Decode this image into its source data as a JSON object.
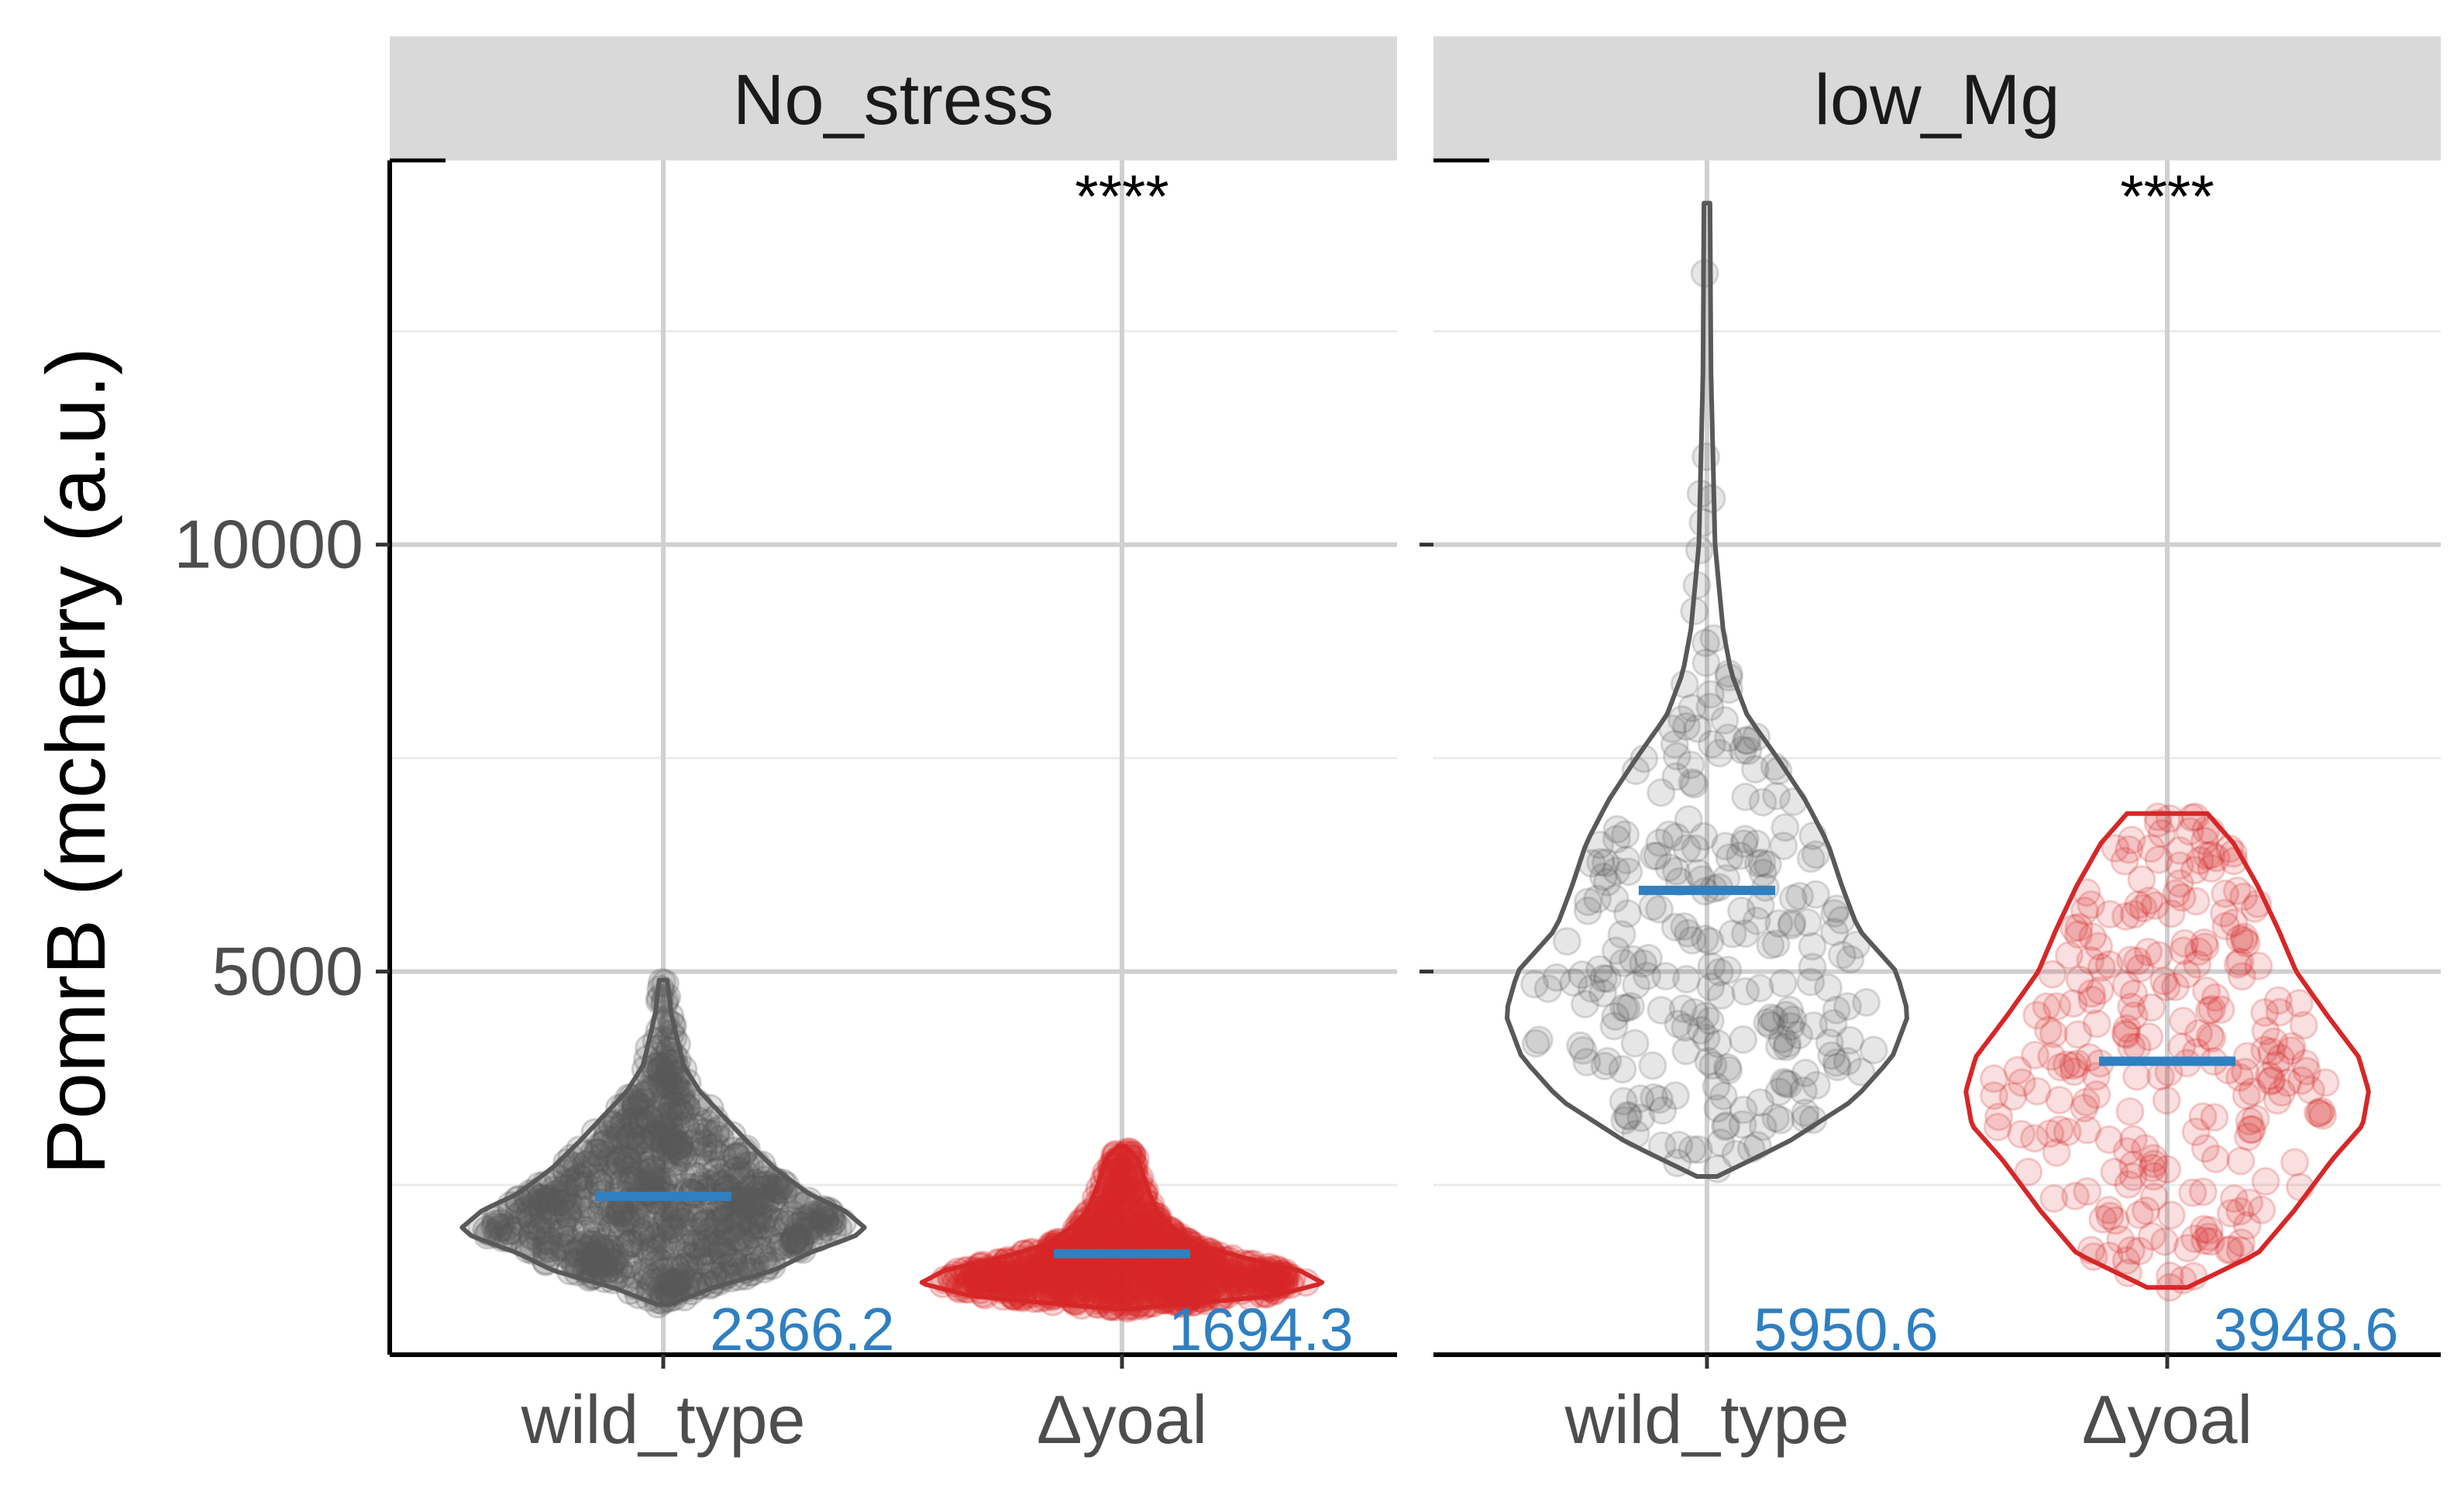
{
  "chart_data": {
    "type": "violin",
    "ylabel": "PomrB (mcherry (a.u.)",
    "xlabel": "",
    "ylim": [
      512,
      14500
    ],
    "yticks": [
      5000,
      10000
    ],
    "grid": true,
    "categories": [
      "wild_type",
      "Δyoal"
    ],
    "colors": {
      "wild_type": "#595959",
      "Δyoal": "#d62728",
      "mean": "#2f7fc1",
      "mean_label": "#2f7fc1"
    },
    "panels": [
      {
        "facet": "No_stress",
        "significance": "****",
        "groups": [
          {
            "category": "wild_type",
            "mean": 2366.2,
            "mean_label": "2366.2",
            "min": 1100,
            "max": 4900,
            "profile": [
              [
                1100,
                0.03
              ],
              [
                1300,
                0.25
              ],
              [
                1500,
                0.55
              ],
              [
                1700,
                0.72
              ],
              [
                1900,
                0.95
              ],
              [
                2000,
                1.0
              ],
              [
                2200,
                0.9
              ],
              [
                2400,
                0.72
              ],
              [
                2700,
                0.55
              ],
              [
                3000,
                0.42
              ],
              [
                3300,
                0.3
              ],
              [
                3600,
                0.18
              ],
              [
                3900,
                0.1
              ],
              [
                4200,
                0.07
              ],
              [
                4500,
                0.04
              ],
              [
                4900,
                0.02
              ]
            ]
          },
          {
            "category": "Δyoal",
            "mean": 1694.3,
            "mean_label": "1694.3",
            "min": 1050,
            "max": 2950,
            "profile": [
              [
                1050,
                0.05
              ],
              [
                1200,
                0.75
              ],
              [
                1350,
                1.0
              ],
              [
                1500,
                0.88
              ],
              [
                1650,
                0.6
              ],
              [
                1800,
                0.38
              ],
              [
                2000,
                0.25
              ],
              [
                2200,
                0.17
              ],
              [
                2500,
                0.12
              ],
              [
                2800,
                0.08
              ],
              [
                2950,
                0.02
              ]
            ]
          }
        ]
      },
      {
        "facet": "low_Mg",
        "significance": "****",
        "groups": [
          {
            "category": "wild_type",
            "mean": 5950.6,
            "mean_label": "5950.6",
            "min": 2600,
            "max": 14000,
            "profile": [
              [
                2600,
                0.05
              ],
              [
                3000,
                0.4
              ],
              [
                3500,
                0.73
              ],
              [
                4000,
                0.92
              ],
              [
                4500,
                1.0
              ],
              [
                5000,
                0.94
              ],
              [
                5500,
                0.75
              ],
              [
                6000,
                0.67
              ],
              [
                6500,
                0.6
              ],
              [
                7000,
                0.49
              ],
              [
                7500,
                0.35
              ],
              [
                8000,
                0.2
              ],
              [
                8500,
                0.12
              ],
              [
                9000,
                0.08
              ],
              [
                10000,
                0.04
              ],
              [
                11000,
                0.03
              ],
              [
                12000,
                0.02
              ],
              [
                14000,
                0.015
              ]
            ]
          },
          {
            "category": "Δyoal",
            "mean": 3948.6,
            "mean_label": "3948.6",
            "min": 1300,
            "max": 6850,
            "profile": [
              [
                1300,
                0.1
              ],
              [
                1700,
                0.45
              ],
              [
                2200,
                0.63
              ],
              [
                2800,
                0.82
              ],
              [
                3200,
                0.97
              ],
              [
                3600,
                1.0
              ],
              [
                4000,
                0.95
              ],
              [
                4500,
                0.79
              ],
              [
                5000,
                0.64
              ],
              [
                5500,
                0.55
              ],
              [
                6000,
                0.45
              ],
              [
                6500,
                0.33
              ],
              [
                6850,
                0.2
              ]
            ]
          }
        ]
      }
    ]
  }
}
